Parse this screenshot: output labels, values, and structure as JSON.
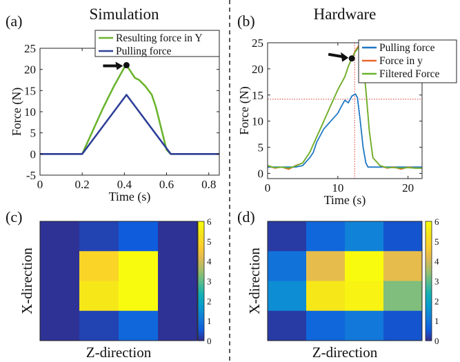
{
  "panels": {
    "a": {
      "tag": "(a)",
      "heading": "Simulation"
    },
    "b": {
      "tag": "(b)",
      "heading": "Hardware"
    },
    "c": {
      "tag": "(c)"
    },
    "d": {
      "tag": "(d)"
    }
  },
  "colors": {
    "green": "#6ab42d",
    "blue": "#2e3f98",
    "hw_blue": "#1f77c4",
    "orange": "#e8662a",
    "hw_green": "#6ab42d",
    "ref_line": "#e03030",
    "divider": "#555555"
  },
  "chart_data": [
    {
      "id": "a",
      "type": "line",
      "xlabel": "Time (s)",
      "ylabel": "Force (N)",
      "xlim": [
        0,
        0.85
      ],
      "ylim": [
        -5,
        25
      ],
      "xticks": [
        0,
        0.2,
        0.4,
        0.6,
        0.8
      ],
      "yticks": [
        -5,
        0,
        5,
        10,
        15,
        20,
        25
      ],
      "grid": false,
      "legend": "top-right",
      "series": [
        {
          "name": "Resulting force in Y",
          "color_key": "green",
          "x": [
            0,
            0.2,
            0.3,
            0.35,
            0.4,
            0.41,
            0.43,
            0.45,
            0.47,
            0.5,
            0.53,
            0.55,
            0.58,
            0.6,
            0.62,
            0.85
          ],
          "y": [
            0,
            0,
            11,
            16,
            20.5,
            21,
            19.5,
            18,
            17.5,
            16,
            14,
            11,
            5,
            1,
            0,
            0
          ]
        },
        {
          "name": "Pulling force",
          "color_key": "blue",
          "x": [
            0,
            0.2,
            0.41,
            0.62,
            0.85
          ],
          "y": [
            0,
            0,
            14,
            0,
            0
          ]
        }
      ],
      "marker": {
        "x": 0.41,
        "y": 21
      },
      "arrow": "pointing to peak"
    },
    {
      "id": "b",
      "type": "line",
      "xlabel": "Time (s)",
      "ylabel": "Force (N)",
      "xlim": [
        0,
        22
      ],
      "ylim": [
        -1,
        25
      ],
      "xticks": [
        0,
        10,
        20
      ],
      "yticks": [
        0,
        5,
        10,
        15,
        20,
        25
      ],
      "grid": false,
      "legend": "top-right",
      "series": [
        {
          "name": "Pulling force",
          "color_key": "hw_blue",
          "x": [
            0,
            2,
            4,
            5,
            6,
            6.5,
            7,
            8,
            9,
            10,
            10.5,
            11,
            11.5,
            12,
            12.5,
            12.8,
            13.2,
            13.6,
            14,
            14.3,
            16,
            18,
            20,
            22
          ],
          "y": [
            1.2,
            1.2,
            1.2,
            1.5,
            3,
            4,
            6,
            8.5,
            10,
            11.5,
            12.8,
            14,
            13.5,
            14.8,
            15.2,
            14.5,
            10,
            5,
            2,
            1.2,
            1.2,
            1.2,
            1.2,
            1.2
          ]
        },
        {
          "name": "Force in y",
          "color_key": "orange",
          "x": [
            0,
            1,
            2,
            3,
            4,
            5,
            6,
            7,
            8,
            9,
            10,
            11,
            11.5,
            12,
            12.5,
            13,
            13.3,
            13.6,
            14,
            14.5,
            15,
            16,
            17,
            18,
            19,
            20,
            21,
            22
          ],
          "y": [
            1.5,
            1,
            1.2,
            0.8,
            1.5,
            2,
            4,
            7,
            10,
            13,
            16,
            18.5,
            20.5,
            22,
            23.5,
            24.5,
            24,
            21,
            16,
            8,
            3,
            1.5,
            1,
            1.2,
            0.8,
            1.2,
            1,
            1
          ]
        },
        {
          "name": "Filtered Force",
          "color_key": "hw_green",
          "x": [
            0,
            1,
            2,
            3,
            4,
            5,
            6,
            7,
            8,
            9,
            10,
            11,
            11.5,
            12,
            12.5,
            13,
            13.3,
            13.6,
            14,
            14.5,
            15,
            16,
            17,
            18,
            19,
            20,
            21,
            22
          ],
          "y": [
            1.5,
            1.1,
            1.2,
            1,
            1.4,
            2,
            4,
            7,
            10,
            13,
            16,
            18.5,
            20.5,
            22,
            23.3,
            24.2,
            23.8,
            21,
            16,
            8,
            3,
            1.5,
            1.1,
            1.1,
            1,
            1.1,
            1,
            1
          ]
        }
      ],
      "marker": {
        "x": 12,
        "y": 22
      },
      "ref_lines": {
        "x": 12.4,
        "y": 14.2
      },
      "arrow": "pointing to marker"
    },
    {
      "id": "c",
      "type": "heatmap",
      "xlabel": "Z-direction",
      "ylabel": "X-direction",
      "colorbar": {
        "min": 0,
        "max": 6,
        "ticks": [
          0,
          1,
          2,
          3,
          4,
          5,
          6
        ]
      },
      "values": [
        [
          0.1,
          0.3,
          0.6,
          0.1
        ],
        [
          0.1,
          5.0,
          6.0,
          0.1
        ],
        [
          0.1,
          5.5,
          6.0,
          0.1
        ],
        [
          0.1,
          0.3,
          0.8,
          0.1
        ]
      ]
    },
    {
      "id": "d",
      "type": "heatmap",
      "xlabel": "Z-direction",
      "ylabel": "X-direction",
      "colorbar": {
        "min": 0,
        "max": 6,
        "ticks": [
          0,
          1,
          2,
          3,
          4,
          5,
          6
        ]
      },
      "values": [
        [
          0.2,
          0.8,
          1.3,
          0.5
        ],
        [
          1.0,
          4.3,
          6.0,
          4.3
        ],
        [
          1.5,
          5.5,
          5.8,
          3.3
        ],
        [
          0.2,
          0.8,
          1.1,
          0.5
        ]
      ]
    }
  ]
}
